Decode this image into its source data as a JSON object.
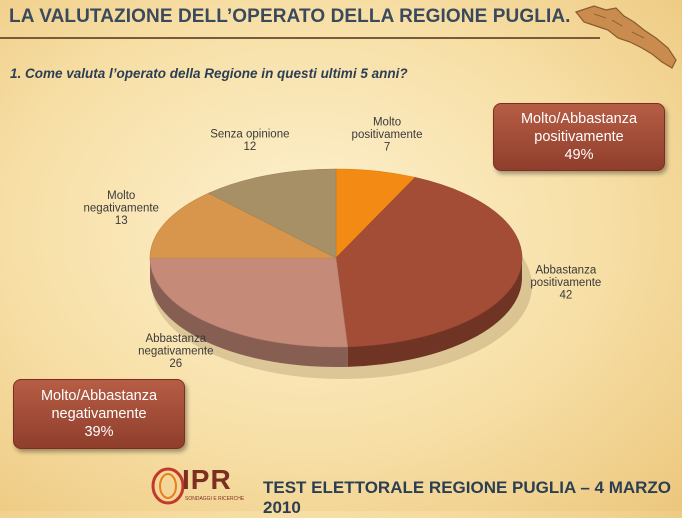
{
  "header": {
    "title": "LA VALUTAZIONE DELL’OPERATO DELLA REGIONE PUGLIA.",
    "question": "1. Come valuta l’operato della Regione in questi ultimi 5 anni?"
  },
  "callouts": {
    "positive": {
      "line1": "Molto/Abbastanza",
      "line2": "positivamente",
      "value": "49%"
    },
    "negative": {
      "line1": "Molto/Abbastanza",
      "line2": "negativamente",
      "value": "39%"
    }
  },
  "footer": {
    "text": "TEST ELETTORALE  REGIONE PUGLIA – 4 MARZO 2010"
  },
  "logo": {
    "text": "IPR",
    "sub": "SONDAGGI E RICERCHE"
  },
  "chart_data": {
    "type": "pie",
    "slices": [
      {
        "label": [
          "Molto",
          "positivamente"
        ],
        "value": 7,
        "color": "#f28a14"
      },
      {
        "label": [
          "Abbastanza",
          "positivamente"
        ],
        "value": 42,
        "color": "#a44d36"
      },
      {
        "label": [
          "Abbastanza",
          "negativamente"
        ],
        "value": 26,
        "color": "#c58a78"
      },
      {
        "label": [
          "Molto",
          "negativamente"
        ],
        "value": 13,
        "color": "#d8964c"
      },
      {
        "label": [
          "Senza opinione"
        ],
        "value": 12,
        "color": "#a89066"
      }
    ]
  }
}
